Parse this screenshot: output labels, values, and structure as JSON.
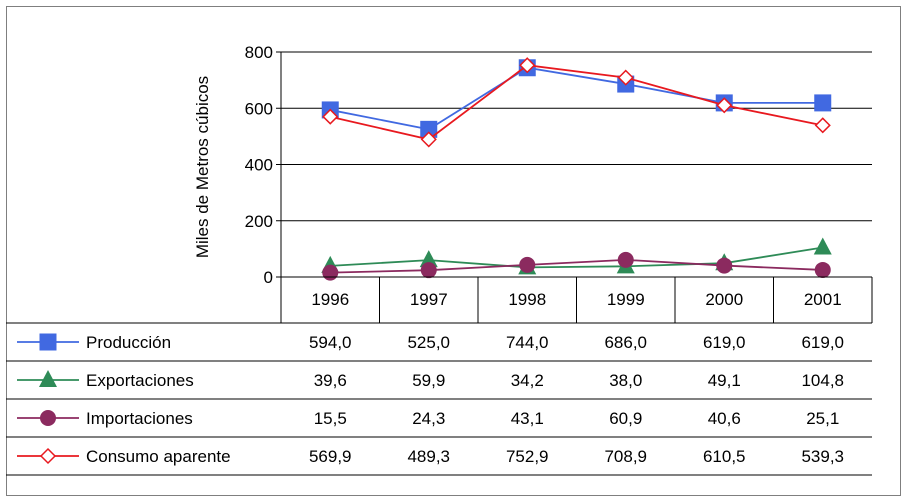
{
  "chart_data": {
    "type": "line",
    "title": "",
    "xlabel": "",
    "ylabel": "Miles de Metros cúbicos",
    "categories": [
      "1996",
      "1997",
      "1998",
      "1999",
      "2000",
      "2001"
    ],
    "ylim": [
      0,
      800
    ],
    "yticks": [
      "0",
      "200",
      "400",
      "600",
      "800"
    ],
    "grid": true,
    "legend_placement": "data-table-below",
    "series": [
      {
        "name": "Producción",
        "color": "#4169e1",
        "marker": "square",
        "values": [
          594.0,
          525.0,
          744.0,
          686.0,
          619.0,
          619.0
        ],
        "labels": [
          "594,0",
          "525,0",
          "744,0",
          "686,0",
          "619,0",
          "619,0"
        ]
      },
      {
        "name": "Exportaciones",
        "color": "#2e8b57",
        "marker": "triangle",
        "values": [
          39.6,
          59.9,
          34.2,
          38.0,
          49.1,
          104.8
        ],
        "labels": [
          "39,6",
          "59,9",
          "34,2",
          "38,0",
          "49,1",
          "104,8"
        ]
      },
      {
        "name": "Importaciones",
        "color": "#8b2a5f",
        "marker": "circle",
        "values": [
          15.5,
          24.3,
          43.1,
          60.9,
          40.6,
          25.1
        ],
        "labels": [
          "15,5",
          "24,3",
          "43,1",
          "60,9",
          "40,6",
          "25,1"
        ]
      },
      {
        "name": "Consumo aparente",
        "color": "#e8191f",
        "marker": "diamond-open",
        "values": [
          569.9,
          489.3,
          752.9,
          708.9,
          610.5,
          539.3
        ],
        "labels": [
          "569,9",
          "489,3",
          "752,9",
          "708,9",
          "610,5",
          "539,3"
        ]
      }
    ]
  }
}
